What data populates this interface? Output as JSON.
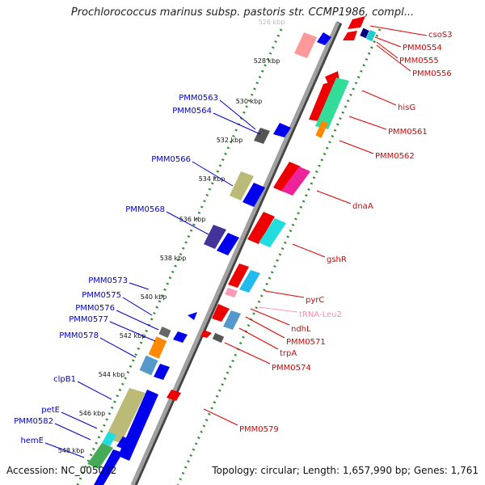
{
  "title": "Prochlorococcus marinus subsp. pastoris str. CCMP1986, compl...",
  "footer": {
    "accession": "Accession: NC_005072",
    "summary": "Topology: circular; Length: 1,657,990 bp; Genes: 1,761"
  },
  "colors": {
    "forward": "#0000ee",
    "reverse": "#ee0000",
    "rna": "#ff99bb",
    "axis_dots": "#2e8b2e",
    "backbone": "#888888"
  },
  "scale": {
    "ticks": [
      {
        "kbp": 526,
        "label": "526 kbp"
      },
      {
        "kbp": 528,
        "label": "528 kbp"
      },
      {
        "kbp": 530,
        "label": "530 kbp"
      },
      {
        "kbp": 532,
        "label": "532 kbp"
      },
      {
        "kbp": 534,
        "label": "534 kbp"
      },
      {
        "kbp": 536,
        "label": "536 kbp"
      },
      {
        "kbp": 538,
        "label": "538 kbp"
      },
      {
        "kbp": 540,
        "label": "540 kbp"
      },
      {
        "kbp": 542,
        "label": "542 kbp"
      },
      {
        "kbp": 544,
        "label": "544 kbp"
      },
      {
        "kbp": 546,
        "label": "546 kbp"
      },
      {
        "kbp": 548,
        "label": "548 kbp"
      }
    ]
  },
  "forward_labels": [
    "PMM0563",
    "PMM0564",
    "PMM0566",
    "PMM0568",
    "PMM0573",
    "PMM0575",
    "PMM0576",
    "PMM0577",
    "PMM0578",
    "clpB1",
    "petE",
    "PMM0582",
    "hemE"
  ],
  "reverse_labels": [
    "csoS3",
    "PMM0554",
    "PMM0555",
    "PMM0556",
    "hisG",
    "PMM0561",
    "PMM0562",
    "dnaA",
    "gshR",
    "pyrC",
    "tRNA-Leu2",
    "ndhL",
    "PMM0571",
    "trpA",
    "PMM0574",
    "PMM0579"
  ]
}
